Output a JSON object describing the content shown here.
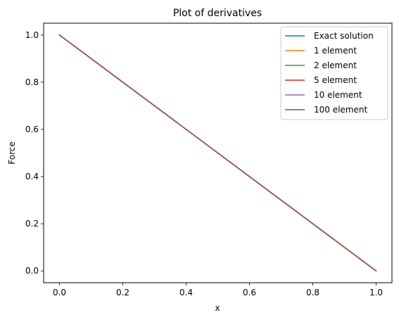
{
  "chart_data": {
    "type": "line",
    "title": "Plot of derivatives",
    "xlabel": "x",
    "ylabel": "Force",
    "xlim": [
      -0.05,
      1.05
    ],
    "ylim": [
      -0.05,
      1.05
    ],
    "xticks": [
      0.0,
      0.2,
      0.4,
      0.6,
      0.8,
      1.0
    ],
    "xtick_labels": [
      "0.0",
      "0.2",
      "0.4",
      "0.6",
      "0.8",
      "1.0"
    ],
    "yticks": [
      0.0,
      0.2,
      0.4,
      0.6,
      0.8,
      1.0
    ],
    "ytick_labels": [
      "0.0",
      "0.2",
      "0.4",
      "0.6",
      "0.8",
      "1.0"
    ],
    "grid": false,
    "legend_position": "top-right",
    "series": [
      {
        "name": "Exact solution",
        "color": "#1f77b4",
        "x": [
          0.0,
          1.0
        ],
        "y": [
          1.0,
          0.0
        ]
      },
      {
        "name": "1 element",
        "color": "#ff7f0e",
        "x": [
          0.0,
          1.0
        ],
        "y": [
          1.0,
          0.0
        ]
      },
      {
        "name": "2 element",
        "color": "#2ca02c",
        "x": [
          0.0,
          0.5,
          1.0
        ],
        "y": [
          1.0,
          0.5,
          0.0
        ]
      },
      {
        "name": "5 element",
        "color": "#d62728",
        "x": [
          0.0,
          0.2,
          0.4,
          0.6,
          0.8,
          1.0
        ],
        "y": [
          1.0,
          0.8,
          0.6,
          0.4,
          0.2,
          0.0
        ]
      },
      {
        "name": "10 element",
        "color": "#9467bd",
        "x": [
          0.0,
          0.1,
          0.2,
          0.3,
          0.4,
          0.5,
          0.6,
          0.7,
          0.8,
          0.9,
          1.0
        ],
        "y": [
          1.0,
          0.9,
          0.8,
          0.7,
          0.6,
          0.5,
          0.4,
          0.3,
          0.2,
          0.1,
          0.0
        ]
      },
      {
        "name": "100 element",
        "color": "#8c564b",
        "x": [
          0.0,
          1.0
        ],
        "y": [
          1.0,
          0.0
        ]
      }
    ]
  }
}
